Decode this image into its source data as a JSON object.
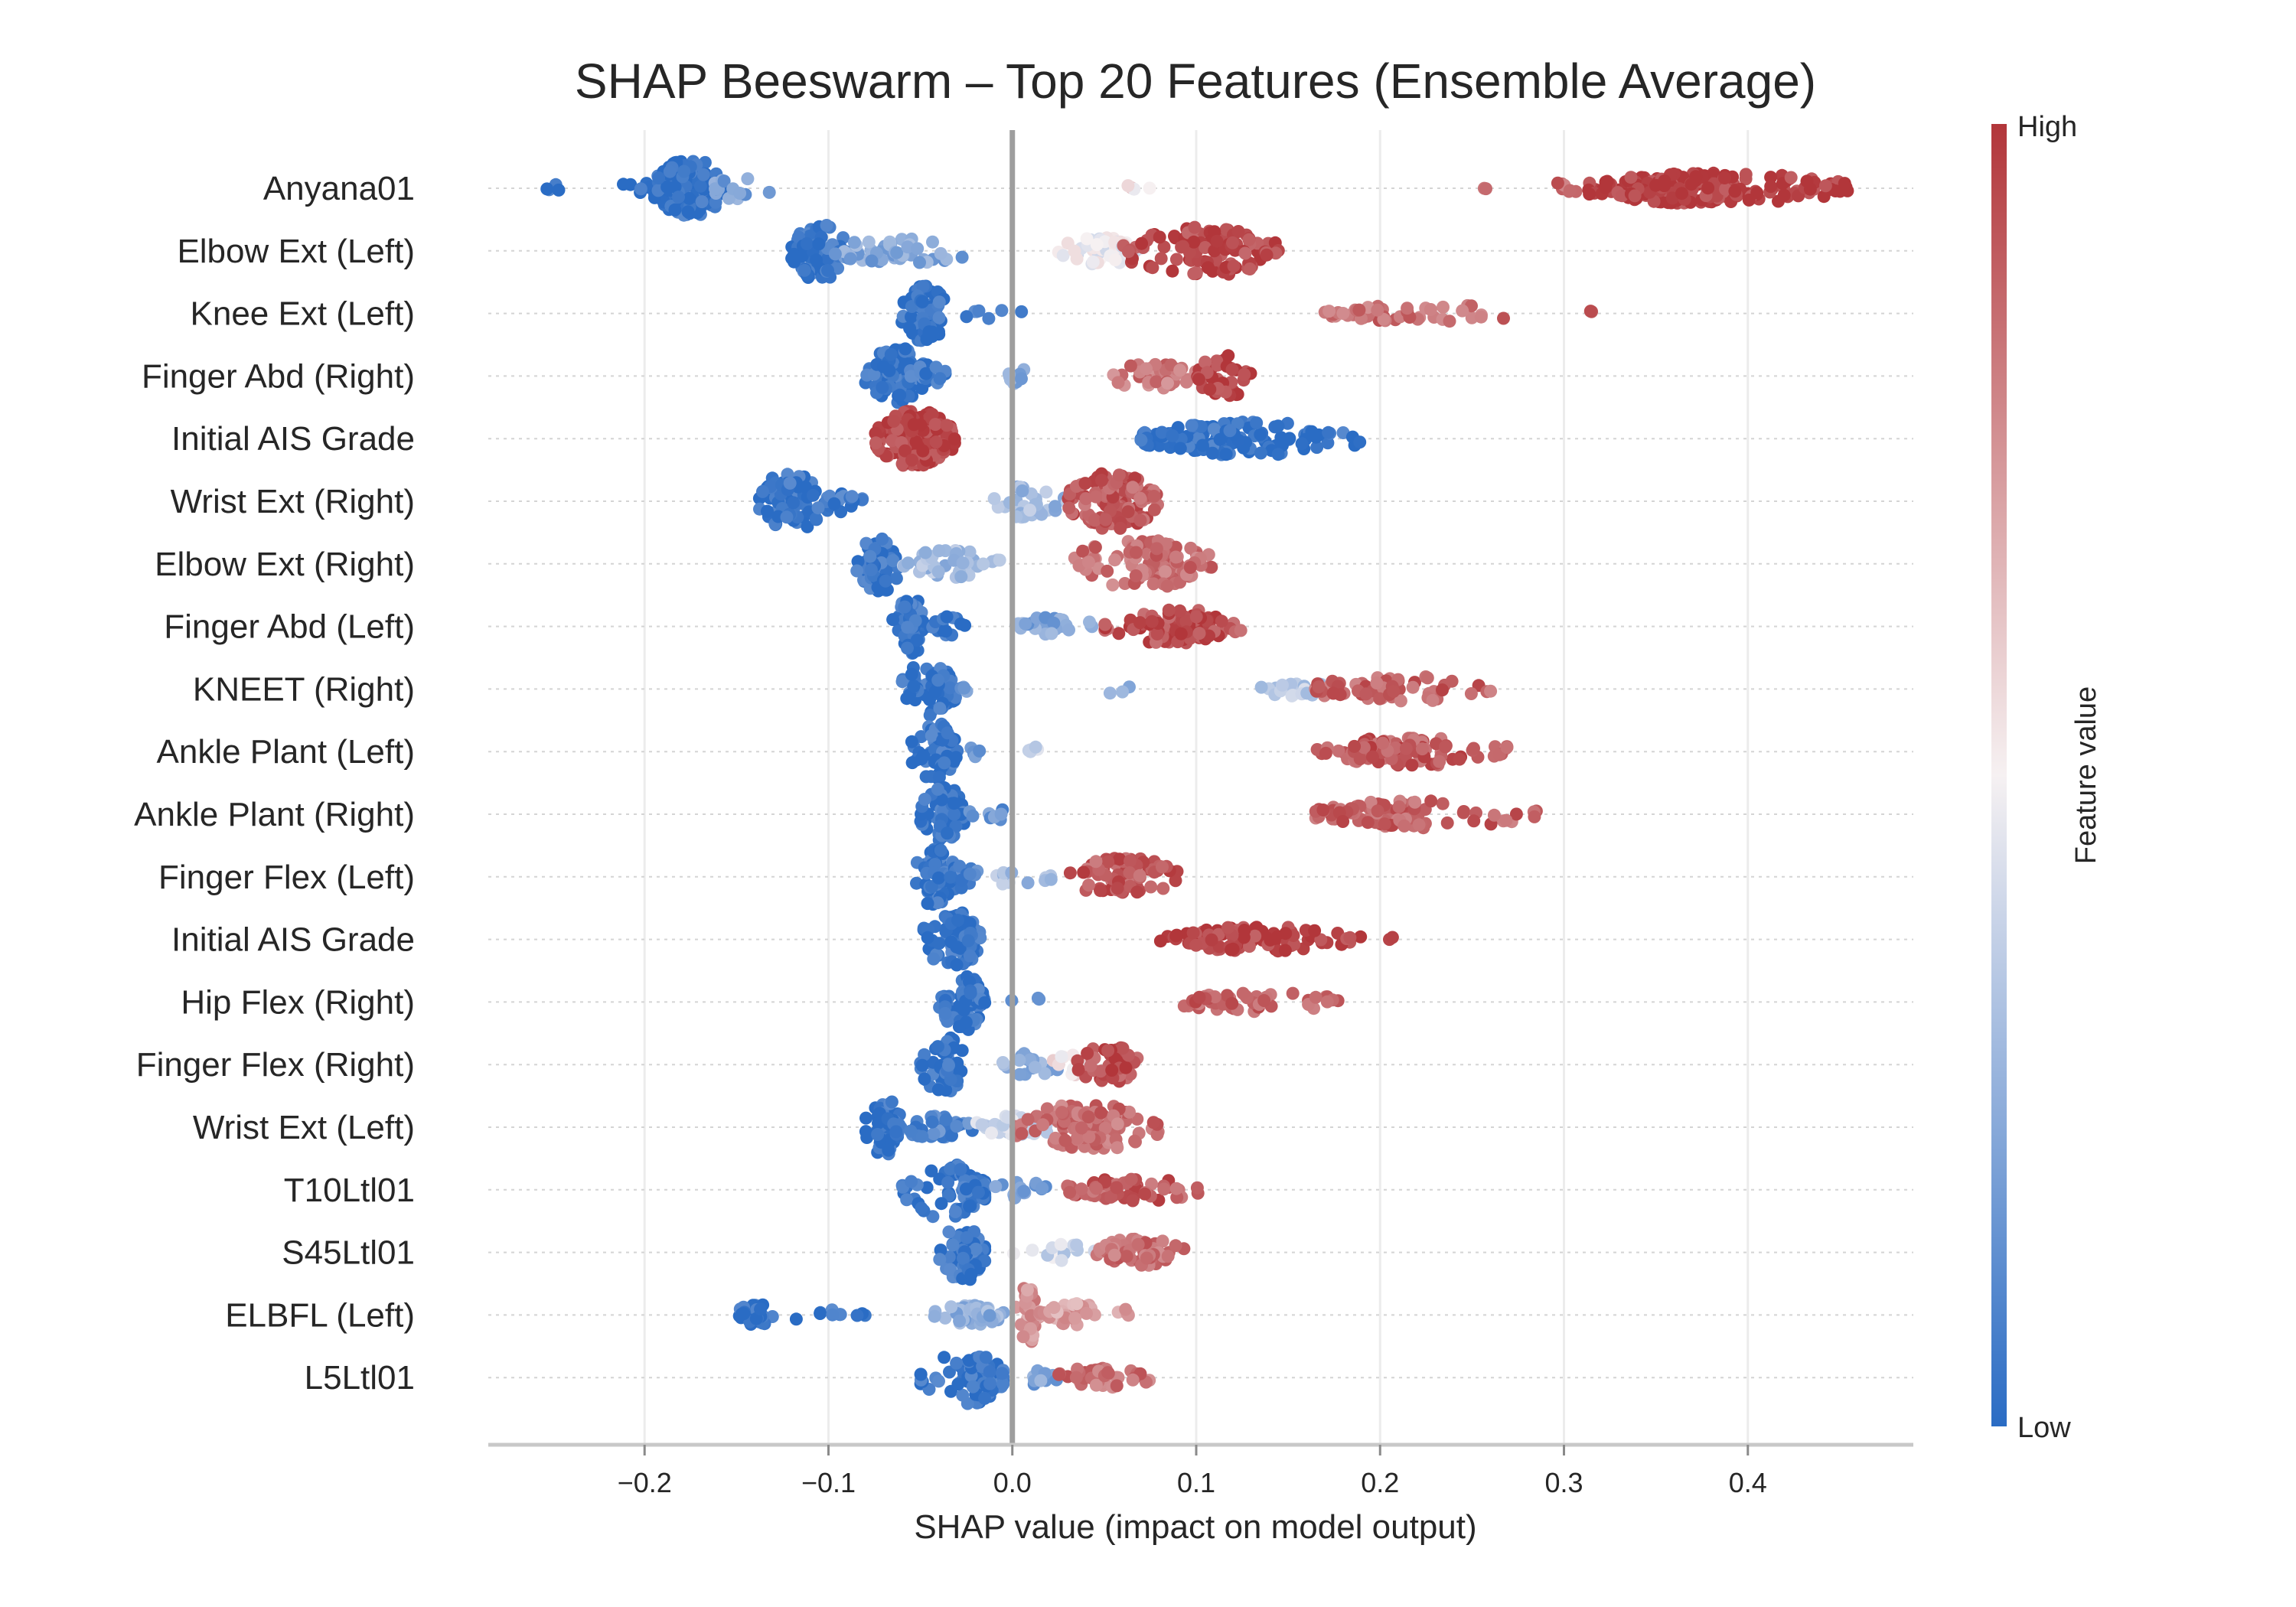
{
  "chart_data": {
    "type": "scatter",
    "subtype": "shap-beeswarm",
    "title": "SHAP Beeswarm – Top 20 Features (Ensemble Average)",
    "xlabel": "SHAP value (impact on model output)",
    "xlim": [
      -0.285,
      0.49
    ],
    "xticks": [
      -0.2,
      -0.1,
      0.0,
      0.1,
      0.2,
      0.3,
      0.4
    ],
    "xtick_labels": [
      "−0.2",
      "−0.1",
      "0.0",
      "0.1",
      "0.2",
      "0.3",
      "0.4"
    ],
    "zero_line": 0.0,
    "grid": "vertical",
    "colorbar": {
      "label": "Feature value",
      "high_label": "High",
      "low_label": "Low",
      "high_color": "#b2363a",
      "mid_color": "#f6f1f2",
      "low_color": "#2a6cc4"
    },
    "features": [
      {
        "name": "Anyana01",
        "clusters": [
          {
            "min": -0.255,
            "max": -0.245,
            "center": -0.25,
            "n": 4,
            "color": 0.0,
            "spread": 0.2
          },
          {
            "min": -0.215,
            "max": -0.195,
            "center": -0.205,
            "n": 6,
            "color": 0.02,
            "spread": 0.3
          },
          {
            "min": -0.195,
            "max": -0.155,
            "center": -0.18,
            "n": 160,
            "color": 0.03,
            "spread": 1.0
          },
          {
            "min": -0.165,
            "max": -0.13,
            "center": -0.155,
            "n": 14,
            "color": 0.2,
            "spread": 0.4
          },
          {
            "min": 0.04,
            "max": 0.1,
            "center": 0.06,
            "n": 4,
            "color": 0.55,
            "spread": 0.1
          },
          {
            "min": 0.25,
            "max": 0.26,
            "center": 0.255,
            "n": 2,
            "color": 0.85,
            "spread": 0.1
          },
          {
            "min": 0.29,
            "max": 0.31,
            "center": 0.3,
            "n": 8,
            "color": 0.88,
            "spread": 0.2
          },
          {
            "min": 0.31,
            "max": 0.455,
            "center": 0.37,
            "n": 220,
            "color": 0.98,
            "spread": 0.55
          }
        ]
      },
      {
        "name": "Elbow Ext (Left)",
        "clusters": [
          {
            "min": -0.12,
            "max": -0.09,
            "center": -0.11,
            "n": 80,
            "color": 0.03,
            "spread": 1.0
          },
          {
            "min": -0.1,
            "max": -0.02,
            "center": -0.07,
            "n": 50,
            "color": 0.22,
            "spread": 0.45
          },
          {
            "min": 0.025,
            "max": 0.07,
            "center": 0.05,
            "n": 60,
            "color": 0.48,
            "spread": 0.5
          },
          {
            "min": 0.06,
            "max": 0.145,
            "center": 0.11,
            "n": 110,
            "color": 0.95,
            "spread": 0.9
          }
        ]
      },
      {
        "name": "Knee Ext (Left)",
        "clusters": [
          {
            "min": -0.06,
            "max": -0.035,
            "center": -0.047,
            "n": 70,
            "color": 0.03,
            "spread": 1.0
          },
          {
            "min": -0.03,
            "max": 0.005,
            "center": -0.015,
            "n": 7,
            "color": 0.1,
            "spread": 0.2
          },
          {
            "min": 0.17,
            "max": 0.28,
            "center": 0.2,
            "n": 50,
            "color": 0.85,
            "spread": 0.3
          },
          {
            "min": 0.31,
            "max": 0.32,
            "center": 0.315,
            "n": 2,
            "color": 0.95,
            "spread": 0.1
          }
        ]
      },
      {
        "name": "Finger Abd (Right)",
        "clusters": [
          {
            "min": -0.08,
            "max": -0.045,
            "center": -0.065,
            "n": 80,
            "color": 0.03,
            "spread": 1.0
          },
          {
            "min": -0.06,
            "max": -0.035,
            "center": -0.05,
            "n": 20,
            "color": 0.05,
            "spread": 0.4
          },
          {
            "min": -0.005,
            "max": 0.01,
            "center": 0.002,
            "n": 10,
            "color": 0.25,
            "spread": 0.3
          },
          {
            "min": 0.05,
            "max": 0.1,
            "center": 0.08,
            "n": 40,
            "color": 0.82,
            "spread": 0.45
          },
          {
            "min": 0.1,
            "max": 0.13,
            "center": 0.115,
            "n": 40,
            "color": 0.96,
            "spread": 0.8
          }
        ]
      },
      {
        "name": "Initial AIS Grade",
        "clusters": [
          {
            "min": -0.075,
            "max": -0.03,
            "center": -0.05,
            "n": 200,
            "color": 0.97,
            "spread": 1.0
          },
          {
            "min": 0.07,
            "max": 0.19,
            "center": 0.11,
            "n": 140,
            "color": 0.03,
            "spread": 0.6
          }
        ]
      },
      {
        "name": "Wrist Ext (Right)",
        "clusters": [
          {
            "min": -0.14,
            "max": -0.1,
            "center": -0.125,
            "n": 80,
            "color": 0.03,
            "spread": 1.0
          },
          {
            "min": -0.12,
            "max": -0.08,
            "center": -0.1,
            "n": 20,
            "color": 0.05,
            "spread": 0.4
          },
          {
            "min": -0.01,
            "max": 0.03,
            "center": 0.01,
            "n": 30,
            "color": 0.3,
            "spread": 0.6
          },
          {
            "min": 0.03,
            "max": 0.08,
            "center": 0.055,
            "n": 130,
            "color": 0.9,
            "spread": 1.0
          }
        ]
      },
      {
        "name": "Elbow Ext (Right)",
        "clusters": [
          {
            "min": -0.085,
            "max": -0.06,
            "center": -0.072,
            "n": 70,
            "color": 0.03,
            "spread": 1.0
          },
          {
            "min": -0.06,
            "max": -0.005,
            "center": -0.04,
            "n": 40,
            "color": 0.3,
            "spread": 0.5
          },
          {
            "min": 0.03,
            "max": 0.11,
            "center": 0.08,
            "n": 110,
            "color": 0.85,
            "spread": 0.85
          }
        ]
      },
      {
        "name": "Finger Abd (Left)",
        "clusters": [
          {
            "min": -0.065,
            "max": -0.045,
            "center": -0.055,
            "n": 60,
            "color": 0.03,
            "spread": 1.0
          },
          {
            "min": -0.045,
            "max": -0.025,
            "center": -0.035,
            "n": 20,
            "color": 0.05,
            "spread": 0.4
          },
          {
            "min": 0.0,
            "max": 0.045,
            "center": 0.02,
            "n": 30,
            "color": 0.22,
            "spread": 0.35
          },
          {
            "min": 0.05,
            "max": 0.125,
            "center": 0.09,
            "n": 100,
            "color": 0.93,
            "spread": 0.6
          }
        ]
      },
      {
        "name": "KNEET (Right)",
        "clusters": [
          {
            "min": -0.06,
            "max": -0.03,
            "center": -0.038,
            "n": 70,
            "color": 0.03,
            "spread": 1.0
          },
          {
            "min": -0.03,
            "max": -0.02,
            "center": -0.025,
            "n": 4,
            "color": 0.15,
            "spread": 0.2
          },
          {
            "min": 0.02,
            "max": 0.095,
            "center": 0.06,
            "n": 3,
            "color": 0.25,
            "spread": 0.2
          },
          {
            "min": 0.135,
            "max": 0.175,
            "center": 0.155,
            "n": 20,
            "color": 0.35,
            "spread": 0.3
          },
          {
            "min": 0.16,
            "max": 0.265,
            "center": 0.2,
            "n": 60,
            "color": 0.88,
            "spread": 0.45
          }
        ]
      },
      {
        "name": "Ankle Plant (Left)",
        "clusters": [
          {
            "min": -0.055,
            "max": -0.03,
            "center": -0.038,
            "n": 70,
            "color": 0.03,
            "spread": 1.0
          },
          {
            "min": -0.03,
            "max": -0.015,
            "center": -0.022,
            "n": 6,
            "color": 0.12,
            "spread": 0.2
          },
          {
            "min": 0.0,
            "max": 0.02,
            "center": 0.01,
            "n": 5,
            "color": 0.4,
            "spread": 0.2
          },
          {
            "min": 0.165,
            "max": 0.27,
            "center": 0.21,
            "n": 90,
            "color": 0.9,
            "spread": 0.5
          }
        ]
      },
      {
        "name": "Ankle Plant (Right)",
        "clusters": [
          {
            "min": -0.05,
            "max": -0.025,
            "center": -0.036,
            "n": 70,
            "color": 0.03,
            "spread": 1.0
          },
          {
            "min": -0.025,
            "max": 0.01,
            "center": -0.01,
            "n": 10,
            "color": 0.15,
            "spread": 0.2
          },
          {
            "min": 0.165,
            "max": 0.285,
            "center": 0.2,
            "n": 90,
            "color": 0.88,
            "spread": 0.5
          }
        ]
      },
      {
        "name": "Finger Flex (Left)",
        "clusters": [
          {
            "min": -0.055,
            "max": -0.03,
            "center": -0.04,
            "n": 70,
            "color": 0.03,
            "spread": 1.0
          },
          {
            "min": -0.035,
            "max": -0.015,
            "center": -0.025,
            "n": 15,
            "color": 0.1,
            "spread": 0.4
          },
          {
            "min": -0.015,
            "max": 0.025,
            "center": 0.0,
            "n": 12,
            "color": 0.3,
            "spread": 0.3
          },
          {
            "min": 0.03,
            "max": 0.09,
            "center": 0.06,
            "n": 70,
            "color": 0.9,
            "spread": 0.7
          }
        ]
      },
      {
        "name": "Initial AIS Grade",
        "clusters": [
          {
            "min": -0.05,
            "max": -0.015,
            "center": -0.027,
            "n": 90,
            "color": 0.03,
            "spread": 1.0
          },
          {
            "min": 0.08,
            "max": 0.19,
            "center": 0.12,
            "n": 100,
            "color": 0.97,
            "spread": 0.45
          },
          {
            "min": 0.2,
            "max": 0.21,
            "center": 0.205,
            "n": 2,
            "color": 0.95,
            "spread": 0.1
          }
        ]
      },
      {
        "name": "Hip Flex (Right)",
        "clusters": [
          {
            "min": -0.04,
            "max": -0.015,
            "center": -0.022,
            "n": 80,
            "color": 0.03,
            "spread": 1.0
          },
          {
            "min": -0.005,
            "max": 0.025,
            "center": 0.01,
            "n": 3,
            "color": 0.2,
            "spread": 0.15
          },
          {
            "min": 0.09,
            "max": 0.18,
            "center": 0.12,
            "n": 50,
            "color": 0.88,
            "spread": 0.35
          }
        ]
      },
      {
        "name": "Finger Flex (Right)",
        "clusters": [
          {
            "min": -0.05,
            "max": -0.025,
            "center": -0.035,
            "n": 60,
            "color": 0.03,
            "spread": 1.0
          },
          {
            "min": -0.01,
            "max": 0.03,
            "center": 0.01,
            "n": 20,
            "color": 0.25,
            "spread": 0.4
          },
          {
            "min": 0.02,
            "max": 0.045,
            "center": 0.035,
            "n": 20,
            "color": 0.55,
            "spread": 0.4
          },
          {
            "min": 0.035,
            "max": 0.07,
            "center": 0.055,
            "n": 50,
            "color": 0.93,
            "spread": 0.7
          }
        ]
      },
      {
        "name": "Wrist Ext (Left)",
        "clusters": [
          {
            "min": -0.08,
            "max": -0.06,
            "center": -0.068,
            "n": 60,
            "color": 0.03,
            "spread": 1.0
          },
          {
            "min": -0.065,
            "max": -0.02,
            "center": -0.04,
            "n": 40,
            "color": 0.1,
            "spread": 0.4
          },
          {
            "min": -0.02,
            "max": 0.02,
            "center": 0.0,
            "n": 40,
            "color": 0.4,
            "spread": 0.45
          },
          {
            "min": 0.0,
            "max": 0.08,
            "center": 0.04,
            "n": 120,
            "color": 0.85,
            "spread": 0.8
          }
        ]
      },
      {
        "name": "T10Ltl01",
        "clusters": [
          {
            "min": -0.06,
            "max": -0.015,
            "center": -0.022,
            "n": 100,
            "color": 0.03,
            "spread": 1.0
          },
          {
            "min": -0.01,
            "max": 0.02,
            "center": 0.005,
            "n": 15,
            "color": 0.2,
            "spread": 0.3
          },
          {
            "min": 0.03,
            "max": 0.105,
            "center": 0.06,
            "n": 60,
            "color": 0.9,
            "spread": 0.4
          }
        ]
      },
      {
        "name": "S45Ltl01",
        "clusters": [
          {
            "min": -0.04,
            "max": -0.015,
            "center": -0.022,
            "n": 70,
            "color": 0.03,
            "spread": 1.0
          },
          {
            "min": 0.0,
            "max": 0.05,
            "center": 0.025,
            "n": 15,
            "color": 0.4,
            "spread": 0.3
          },
          {
            "min": 0.045,
            "max": 0.095,
            "center": 0.065,
            "n": 60,
            "color": 0.85,
            "spread": 0.5
          }
        ]
      },
      {
        "name": "ELBFL (Left)",
        "clusters": [
          {
            "min": -0.15,
            "max": -0.13,
            "center": -0.14,
            "n": 30,
            "color": 0.02,
            "spread": 0.4
          },
          {
            "min": -0.13,
            "max": -0.075,
            "center": -0.1,
            "n": 10,
            "color": 0.05,
            "spread": 0.2
          },
          {
            "min": -0.05,
            "max": 0.0,
            "center": -0.02,
            "n": 50,
            "color": 0.25,
            "spread": 0.35
          },
          {
            "min": 0.0,
            "max": 0.015,
            "center": 0.01,
            "n": 40,
            "color": 0.75,
            "spread": 1.0
          },
          {
            "min": 0.015,
            "max": 0.065,
            "center": 0.03,
            "n": 50,
            "color": 0.72,
            "spread": 0.45
          }
        ]
      },
      {
        "name": "L5Ltl01",
        "clusters": [
          {
            "min": -0.05,
            "max": -0.005,
            "center": -0.015,
            "n": 90,
            "color": 0.03,
            "spread": 1.0
          },
          {
            "min": 0.005,
            "max": 0.025,
            "center": 0.015,
            "n": 10,
            "color": 0.2,
            "spread": 0.25
          },
          {
            "min": 0.025,
            "max": 0.075,
            "center": 0.045,
            "n": 50,
            "color": 0.85,
            "spread": 0.4
          }
        ]
      }
    ]
  }
}
